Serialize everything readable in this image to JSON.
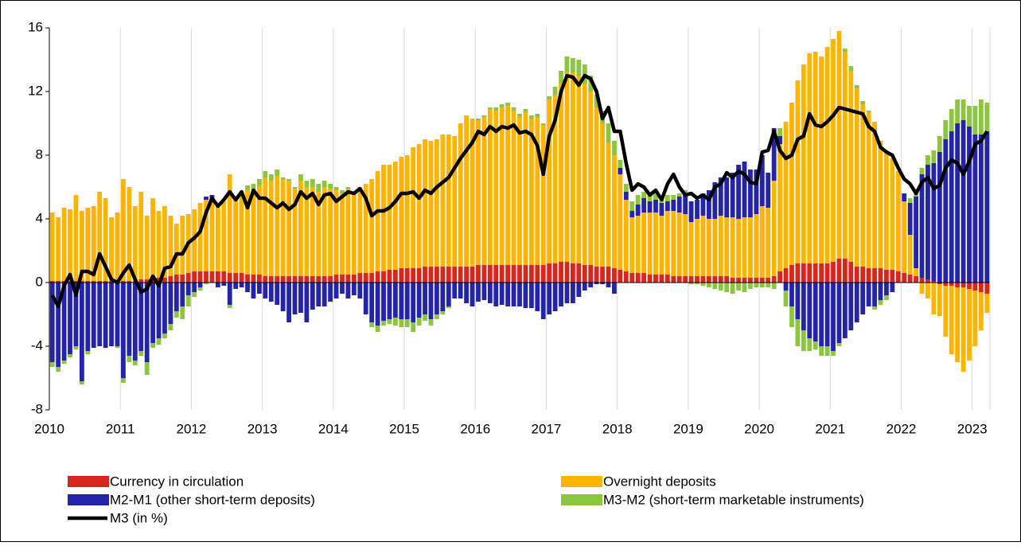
{
  "chart_data": {
    "type": "bar",
    "stacked": true,
    "categories": [
      "2010",
      null,
      null,
      null,
      null,
      null,
      null,
      null,
      null,
      null,
      null,
      null,
      "2011",
      null,
      null,
      null,
      null,
      null,
      null,
      null,
      null,
      null,
      null,
      null,
      "2012",
      null,
      null,
      null,
      null,
      null,
      null,
      null,
      null,
      null,
      null,
      null,
      "2013",
      null,
      null,
      null,
      null,
      null,
      null,
      null,
      null,
      null,
      null,
      null,
      "2014",
      null,
      null,
      null,
      null,
      null,
      null,
      null,
      null,
      null,
      null,
      null,
      "2015",
      null,
      null,
      null,
      null,
      null,
      null,
      null,
      null,
      null,
      null,
      null,
      "2016",
      null,
      null,
      null,
      null,
      null,
      null,
      null,
      null,
      null,
      null,
      null,
      "2017",
      null,
      null,
      null,
      null,
      null,
      null,
      null,
      null,
      null,
      null,
      null,
      "2018",
      null,
      null,
      null,
      null,
      null,
      null,
      null,
      null,
      null,
      null,
      null,
      "2019",
      null,
      null,
      null,
      null,
      null,
      null,
      null,
      null,
      null,
      null,
      null,
      "2020",
      null,
      null,
      null,
      null,
      null,
      null,
      null,
      null,
      null,
      null,
      null,
      "2021",
      null,
      null,
      null,
      null,
      null,
      null,
      null,
      null,
      null,
      null,
      null,
      "2022",
      null,
      null,
      null,
      null,
      null,
      null,
      null,
      null,
      null,
      null,
      null,
      "2023",
      null,
      null
    ],
    "series": [
      {
        "name": "Currency in circulation",
        "color": "#d9261c",
        "type": "bar",
        "values": [
          0.1,
          0.1,
          0.1,
          0.1,
          0.1,
          0.1,
          0.1,
          0.1,
          0.1,
          0.1,
          0.1,
          0.1,
          0.1,
          0.1,
          0.1,
          0.2,
          0.2,
          0.2,
          0.3,
          0.3,
          0.4,
          0.5,
          0.5,
          0.6,
          0.7,
          0.7,
          0.7,
          0.7,
          0.7,
          0.7,
          0.6,
          0.6,
          0.6,
          0.5,
          0.5,
          0.5,
          0.4,
          0.4,
          0.4,
          0.4,
          0.4,
          0.4,
          0.4,
          0.4,
          0.4,
          0.4,
          0.4,
          0.4,
          0.5,
          0.5,
          0.5,
          0.5,
          0.6,
          0.6,
          0.6,
          0.7,
          0.7,
          0.8,
          0.8,
          0.9,
          0.9,
          0.9,
          0.9,
          1.0,
          1.0,
          1.0,
          1.0,
          1.0,
          1.0,
          1.0,
          1.0,
          1.0,
          1.1,
          1.1,
          1.1,
          1.1,
          1.1,
          1.1,
          1.1,
          1.1,
          1.1,
          1.1,
          1.1,
          1.1,
          1.2,
          1.2,
          1.3,
          1.3,
          1.2,
          1.2,
          1.1,
          1.1,
          1.0,
          1.0,
          1.0,
          0.9,
          0.8,
          0.7,
          0.6,
          0.6,
          0.6,
          0.5,
          0.5,
          0.5,
          0.5,
          0.4,
          0.4,
          0.4,
          0.4,
          0.4,
          0.4,
          0.4,
          0.4,
          0.4,
          0.4,
          0.3,
          0.3,
          0.3,
          0.3,
          0.3,
          0.3,
          0.3,
          0.4,
          0.7,
          0.9,
          1.1,
          1.2,
          1.2,
          1.2,
          1.2,
          1.2,
          1.2,
          1.3,
          1.5,
          1.5,
          1.3,
          1.0,
          1.0,
          0.9,
          0.9,
          0.9,
          0.8,
          0.8,
          0.7,
          0.6,
          0.5,
          0.4,
          0.3,
          0.2,
          0.1,
          -0.1,
          -0.2,
          -0.2,
          -0.3,
          -0.3,
          -0.4,
          -0.5,
          -0.6,
          -0.7
        ]
      },
      {
        "name": "Overnight deposits",
        "color": "#ffb400",
        "type": "bar",
        "values": [
          4.3,
          4.0,
          4.6,
          4.5,
          5.4,
          4.4,
          4.6,
          4.7,
          5.6,
          5.2,
          4.0,
          4.3,
          6.4,
          5.9,
          4.7,
          5.5,
          4.0,
          5.1,
          4.2,
          4.5,
          3.8,
          3.2,
          3.7,
          3.7,
          3.9,
          4.3,
          4.5,
          4.6,
          4.2,
          4.4,
          6.2,
          4.8,
          5.1,
          5.3,
          5.2,
          5.6,
          6.2,
          6.0,
          6.3,
          6.1,
          6.0,
          5.5,
          6.0,
          5.6,
          5.6,
          5.3,
          5.6,
          5.5,
          5.3,
          5.1,
          5.4,
          5.2,
          5.4,
          5.6,
          5.9,
          6.3,
          6.7,
          6.6,
          6.8,
          7.0,
          7.1,
          7.6,
          7.8,
          8.0,
          7.9,
          8.0,
          8.3,
          8.3,
          8.2,
          9.0,
          9.5,
          9.3,
          9.1,
          9.3,
          9.8,
          9.7,
          9.9,
          10.0,
          9.7,
          9.3,
          9.6,
          9.2,
          9.3,
          8.8,
          10.3,
          10.6,
          11.2,
          11.9,
          12.0,
          11.8,
          11.4,
          10.9,
          10.0,
          9.0,
          7.8,
          7.1,
          6.0,
          4.5,
          3.5,
          3.6,
          3.8,
          3.9,
          3.9,
          3.7,
          4.0,
          4.1,
          4.0,
          3.9,
          3.4,
          3.6,
          3.8,
          3.6,
          3.6,
          3.8,
          3.7,
          3.8,
          3.7,
          3.8,
          3.8,
          4.0,
          4.5,
          4.4,
          6.0,
          8.0,
          9.2,
          10.2,
          11.5,
          12.5,
          13.2,
          13.3,
          13.0,
          13.6,
          14.0,
          14.3,
          13.0,
          12.0,
          11.2,
          10.2,
          9.8,
          9.2,
          8.0,
          7.5,
          7.0,
          6.3,
          4.5,
          2.5,
          0.5,
          -0.7,
          -1.0,
          -2.0,
          -2.0,
          -3.2,
          -4.3,
          -4.7,
          -5.3,
          -4.5,
          -3.5,
          -2.4,
          -1.2
        ]
      },
      {
        "name": "M2-M1 (other short-term deposits)",
        "color": "#2424a8",
        "type": "bar",
        "values": [
          -5.0,
          -5.3,
          -4.9,
          -4.5,
          -4.0,
          -6.2,
          -4.3,
          -4.1,
          -4.0,
          -4.1,
          -4.0,
          -4.0,
          -6.0,
          -4.6,
          -4.9,
          -4.3,
          -5.0,
          -3.8,
          -3.5,
          -3.2,
          -2.6,
          -1.8,
          -1.5,
          -0.8,
          -0.6,
          -0.3,
          0.2,
          0.2,
          -0.3,
          -0.2,
          -1.4,
          -0.4,
          -0.3,
          -0.6,
          -1.0,
          -0.7,
          -1.0,
          -1.2,
          -1.4,
          -1.8,
          -2.5,
          -2.0,
          -1.9,
          -2.5,
          -1.7,
          -1.5,
          -1.5,
          -1.2,
          -1.0,
          -0.7,
          -1.0,
          -0.8,
          -1.0,
          -2.0,
          -2.5,
          -2.7,
          -2.4,
          -2.3,
          -2.2,
          -2.3,
          -2.3,
          -2.5,
          -2.2,
          -2.0,
          -2.3,
          -2.0,
          -1.8,
          -1.5,
          -1.0,
          -1.0,
          -1.3,
          -1.5,
          -1.2,
          -1.1,
          -1.3,
          -1.5,
          -1.4,
          -1.5,
          -1.5,
          -1.5,
          -1.6,
          -1.6,
          -1.8,
          -2.3,
          -2.0,
          -1.8,
          -1.5,
          -1.3,
          -1.3,
          -0.9,
          -0.5,
          -0.3,
          -0.1,
          -0.1,
          -0.3,
          -0.7,
          0.4,
          0.5,
          0.4,
          0.7,
          0.9,
          0.7,
          0.8,
          0.8,
          0.6,
          0.7,
          1.0,
          1.3,
          1.3,
          1.2,
          1.4,
          1.8,
          2.3,
          2.4,
          2.5,
          2.8,
          3.4,
          3.5,
          3.0,
          2.8,
          3.2,
          2.2,
          3.3,
          0.5,
          -0.5,
          -1.5,
          -2.3,
          -3.0,
          -3.5,
          -3.7,
          -4.0,
          -4.0,
          -4.3,
          -3.8,
          -3.5,
          -3.0,
          -2.5,
          -2.0,
          -1.5,
          -1.5,
          -1.1,
          -0.8,
          -0.6,
          0,
          0.5,
          2.0,
          4.5,
          6.5,
          7.2,
          7.4,
          8.2,
          9.0,
          9.5,
          10.0,
          10.2,
          9.8,
          9.3,
          9.3,
          9.5
        ]
      },
      {
        "name": "M3-M2 (short-term marketable instruments)",
        "color": "#8cc63f",
        "type": "bar",
        "values": [
          -0.3,
          -0.3,
          -0.2,
          -0.2,
          -0.2,
          -0.2,
          -0.2,
          0,
          0,
          0,
          0,
          -0.1,
          -0.3,
          -0.4,
          -0.3,
          -0.3,
          -0.8,
          -0.3,
          -0.4,
          -0.3,
          -0.4,
          -0.4,
          -0.8,
          -0.7,
          -0.3,
          -0.2,
          -0.1,
          0,
          0,
          0,
          -0.2,
          0,
          0,
          0.3,
          0.5,
          0.4,
          0.4,
          0.4,
          0.4,
          0.1,
          0.1,
          0.1,
          0.4,
          0.4,
          0.5,
          0.5,
          0.4,
          0.3,
          0.2,
          0.2,
          0.1,
          0,
          0,
          0,
          -0.3,
          -0.4,
          -0.3,
          -0.3,
          -0.5,
          -0.5,
          -0.5,
          -0.6,
          -0.5,
          -0.4,
          -0.4,
          -0.3,
          -0.2,
          -0.1,
          0,
          0,
          0,
          0,
          0.1,
          0.1,
          0.1,
          0.2,
          0.2,
          0.2,
          0.2,
          0.2,
          0.2,
          0.2,
          0.2,
          0.1,
          0.2,
          0.5,
          0.8,
          1.0,
          0.9,
          1.0,
          1.2,
          1.0,
          0.8,
          0.8,
          1.2,
          0.9,
          0.5,
          0.5,
          0.6,
          0.6,
          0.4,
          0.5,
          0.5,
          0.5,
          0.4,
          0.3,
          0.2,
          0.2,
          -0.1,
          -0.1,
          -0.2,
          -0.3,
          -0.4,
          -0.5,
          -0.6,
          -0.7,
          -0.5,
          -0.6,
          -0.4,
          -0.3,
          -0.3,
          -0.3,
          -0.4,
          0.5,
          -1.0,
          -1.3,
          -1.7,
          -1.3,
          -0.8,
          -0.5,
          -0.6,
          -0.6,
          -0.3,
          -0.2,
          0.2,
          0.3,
          0.2,
          0.2,
          0.1,
          -0.2,
          -0.3,
          -0.3,
          0,
          0,
          0,
          0.3,
          0.4,
          0.4,
          0.6,
          0.8,
          1.0,
          1.2,
          1.4,
          1.5,
          1.3,
          1.3,
          1.8,
          2.2,
          1.8
        ]
      },
      {
        "name": "M3 (in %)",
        "color": "#000000",
        "type": "line",
        "values": [
          -0.8,
          -1.5,
          -0.2,
          0.5,
          -0.8,
          0.7,
          0.7,
          0.5,
          1.8,
          1.0,
          0.2,
          0,
          0.6,
          1.1,
          0.2,
          -0.6,
          -0.4,
          0.4,
          -0.2,
          0.9,
          1.0,
          1.8,
          1.8,
          2.5,
          2.8,
          3.2,
          4.4,
          5.3,
          4.8,
          5.2,
          5.7,
          5.2,
          5.7,
          4.7,
          5.8,
          5.3,
          5.3,
          5.0,
          4.7,
          5.0,
          4.6,
          4.9,
          5.7,
          5.3,
          5.6,
          4.9,
          5.5,
          5.6,
          5.1,
          5.4,
          5.7,
          5.6,
          5.9,
          5.3,
          4.2,
          4.5,
          4.5,
          4.7,
          5.1,
          5.6,
          5.6,
          5.7,
          5.3,
          5.8,
          5.6,
          6.0,
          6.3,
          6.6,
          7.2,
          7.8,
          8.3,
          8.8,
          9.5,
          9.3,
          9.8,
          9.5,
          9.8,
          9.7,
          9.9,
          9.4,
          9.5,
          9.3,
          8.6,
          6.8,
          9.2,
          10.2,
          12.0,
          13.0,
          12.9,
          12.4,
          13.0,
          12.8,
          12.0,
          10.3,
          11.0,
          9.5,
          9.5,
          7.5,
          5.8,
          6.2,
          6.0,
          5.5,
          5.8,
          5.2,
          6.2,
          6.8,
          6.0,
          5.5,
          5.6,
          5.3,
          5.5,
          5.2,
          6.0,
          6.2,
          6.9,
          6.6,
          7.0,
          6.8,
          6.3,
          6.2,
          8.2,
          8.3,
          9.5,
          8.3,
          7.8,
          8.0,
          9.0,
          9.2,
          10.6,
          9.9,
          9.8,
          10.1,
          10.5,
          11.0,
          10.9,
          10.8,
          10.7,
          10.6,
          9.8,
          9.5,
          8.5,
          8.2,
          8.0,
          7.2,
          6.5,
          6.2,
          5.6,
          6.3,
          6.6,
          5.9,
          6.1,
          7.2,
          7.7,
          7.5,
          6.8,
          7.6,
          8.7,
          8.9,
          9.5
        ]
      }
    ],
    "ylim": [
      -8,
      16
    ],
    "yticks": [
      -8,
      -4,
      0,
      4,
      8,
      12,
      16
    ],
    "xgrid": true,
    "legend": "bottom"
  }
}
